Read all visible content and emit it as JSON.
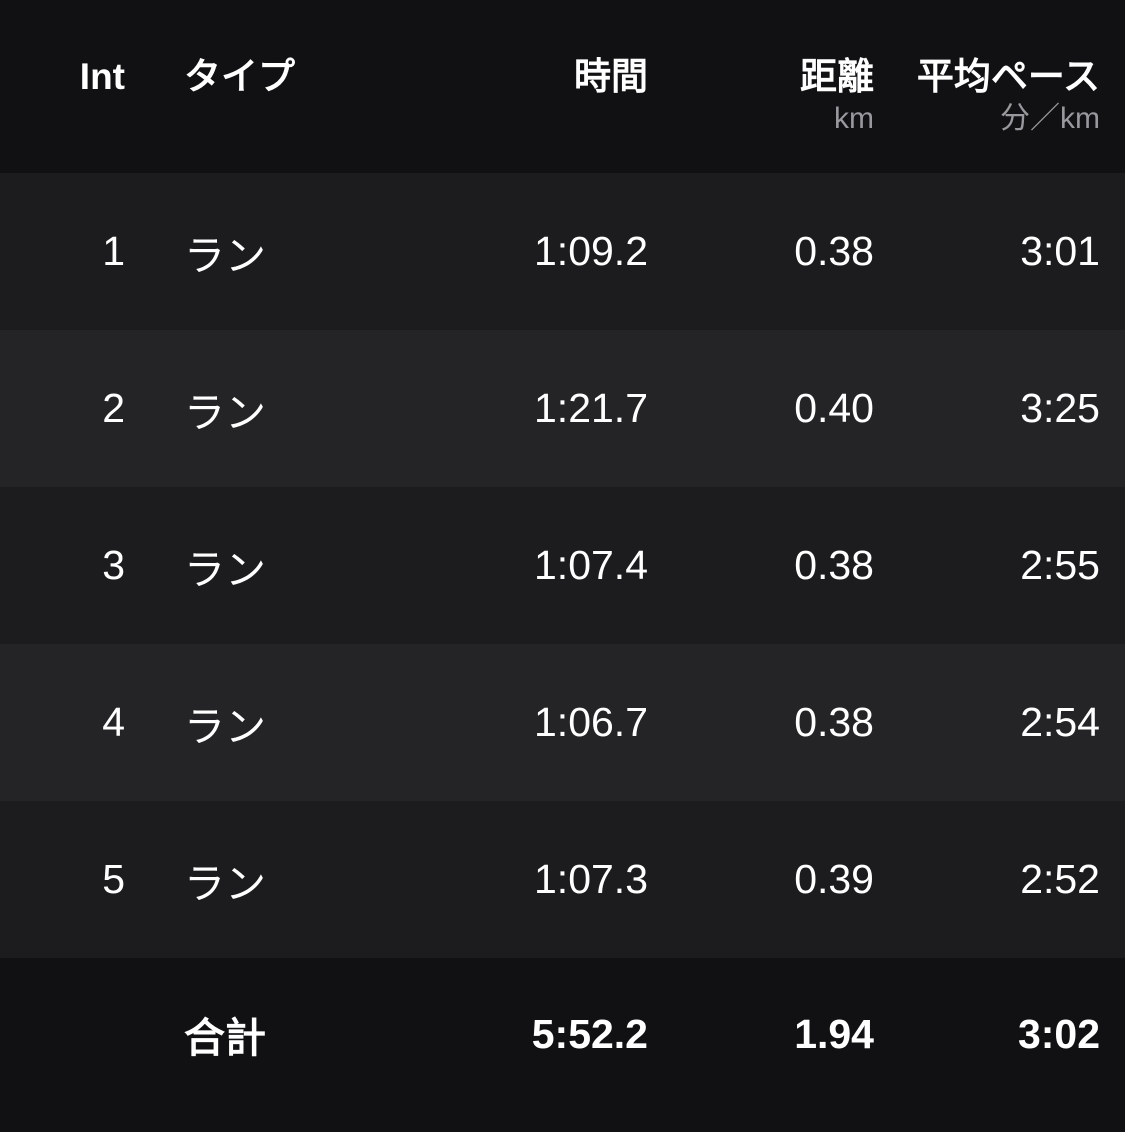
{
  "table": {
    "columns": [
      {
        "key": "int",
        "label": "Int",
        "unit": ""
      },
      {
        "key": "type",
        "label": "タイプ",
        "unit": ""
      },
      {
        "key": "time",
        "label": "時間",
        "unit": ""
      },
      {
        "key": "distance",
        "label": "距離",
        "unit": "km"
      },
      {
        "key": "pace",
        "label": "平均ペース",
        "unit": "分／km"
      }
    ],
    "rows": [
      {
        "int": "1",
        "type": "ラン",
        "time": "1:09.2",
        "distance": "0.38",
        "pace": "3:01"
      },
      {
        "int": "2",
        "type": "ラン",
        "time": "1:21.7",
        "distance": "0.40",
        "pace": "3:25"
      },
      {
        "int": "3",
        "type": "ラン",
        "time": "1:07.4",
        "distance": "0.38",
        "pace": "2:55"
      },
      {
        "int": "4",
        "type": "ラン",
        "time": "1:06.7",
        "distance": "0.38",
        "pace": "2:54"
      },
      {
        "int": "5",
        "type": "ラン",
        "time": "1:07.3",
        "distance": "0.39",
        "pace": "2:52"
      }
    ],
    "total": {
      "label": "合計",
      "time": "5:52.2",
      "distance": "1.94",
      "pace": "3:02"
    }
  },
  "colors": {
    "header_bg": "#111113",
    "row_dark": "#1c1c1e",
    "row_light": "#242426",
    "total_bg": "#111113",
    "text_primary": "#ffffff",
    "text_unit": "#98989d"
  }
}
